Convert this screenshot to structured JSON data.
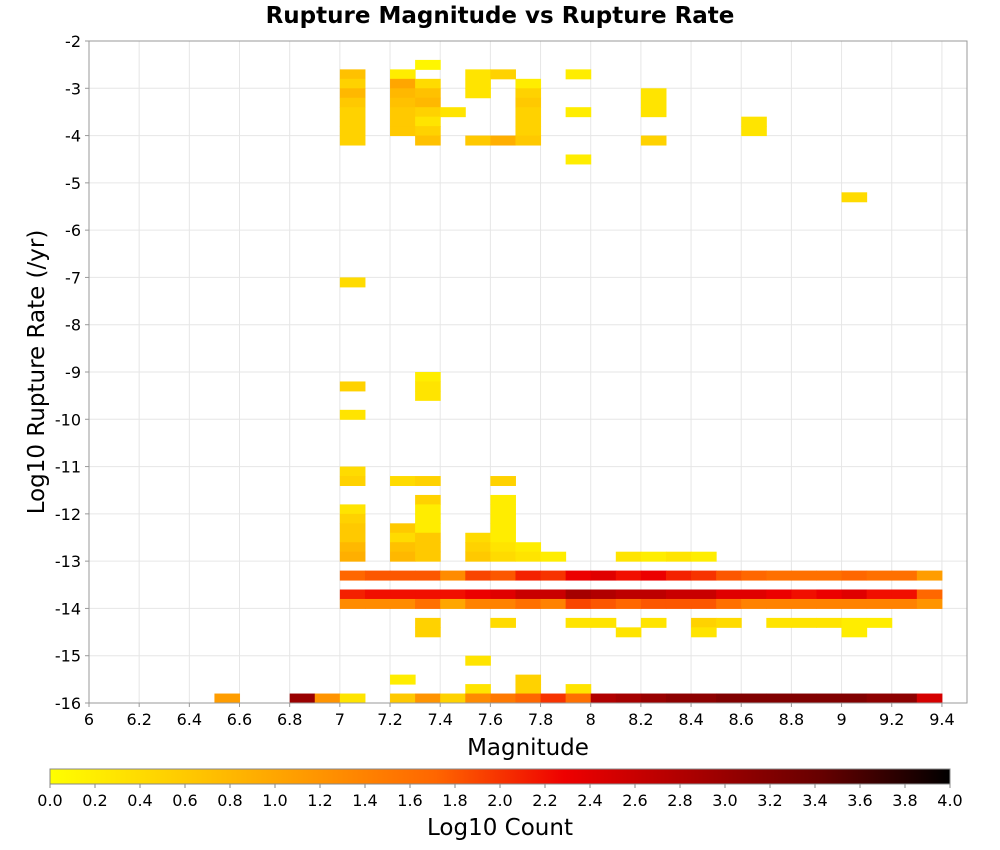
{
  "chart_data": {
    "type": "heatmap",
    "title": "Rupture Magnitude vs Rupture Rate",
    "xlabel": "Magnitude",
    "ylabel": "Log10 Rupture Rate (/yr)",
    "colorbar_label": "Log10 Count",
    "xlim": [
      6,
      9.5
    ],
    "ylim": [
      -16,
      -2
    ],
    "x_ticks": [
      "6",
      "6.2",
      "6.4",
      "6.6",
      "6.8",
      "7",
      "7.2",
      "7.4",
      "7.6",
      "7.8",
      "8",
      "8.2",
      "8.4",
      "8.6",
      "8.8",
      "9",
      "9.2",
      "9.4"
    ],
    "y_ticks": [
      "-2",
      "-3",
      "-4",
      "-5",
      "-6",
      "-7",
      "-8",
      "-9",
      "-10",
      "-11",
      "-12",
      "-13",
      "-14",
      "-15",
      "-16"
    ],
    "colorbar_ticks": [
      "0.0",
      "0.2",
      "0.4",
      "0.6",
      "0.8",
      "1.0",
      "1.2",
      "1.4",
      "1.6",
      "1.8",
      "2.0",
      "2.2",
      "2.4",
      "2.6",
      "2.8",
      "3.0",
      "3.2",
      "3.4",
      "3.6",
      "3.8",
      "4.0"
    ],
    "colorbar_range": [
      0,
      4
    ],
    "colormap": [
      "#ffff00",
      "#ffcc00",
      "#ff9900",
      "#ff6600",
      "#ee0000",
      "#aa0000",
      "#660000",
      "#000000"
    ],
    "bin_width_x": 0.1,
    "bin_height_y": 0.2,
    "cells": [
      [
        7.35,
        -2.5,
        0.1
      ],
      [
        7.05,
        -2.7,
        0.7
      ],
      [
        7.25,
        -2.7,
        0.2
      ],
      [
        7.55,
        -2.7,
        0.3
      ],
      [
        7.65,
        -2.7,
        0.5
      ],
      [
        7.95,
        -2.7,
        0.2
      ],
      [
        7.05,
        -2.9,
        0.5
      ],
      [
        7.25,
        -2.9,
        1.0
      ],
      [
        7.35,
        -2.9,
        0.4
      ],
      [
        7.55,
        -2.9,
        0.3
      ],
      [
        7.75,
        -2.9,
        0.2
      ],
      [
        7.05,
        -3.1,
        0.8
      ],
      [
        7.25,
        -3.1,
        0.8
      ],
      [
        7.35,
        -3.1,
        0.7
      ],
      [
        7.55,
        -3.1,
        0.3
      ],
      [
        7.75,
        -3.1,
        0.5
      ],
      [
        8.25,
        -3.1,
        0.3
      ],
      [
        7.05,
        -3.3,
        0.6
      ],
      [
        7.25,
        -3.3,
        0.7
      ],
      [
        7.35,
        -3.3,
        0.8
      ],
      [
        7.75,
        -3.3,
        0.6
      ],
      [
        8.25,
        -3.3,
        0.3
      ],
      [
        7.05,
        -3.5,
        0.5
      ],
      [
        7.25,
        -3.5,
        0.6
      ],
      [
        7.35,
        -3.5,
        0.5
      ],
      [
        7.45,
        -3.5,
        0.3
      ],
      [
        7.75,
        -3.5,
        0.5
      ],
      [
        7.95,
        -3.5,
        0.2
      ],
      [
        8.25,
        -3.5,
        0.3
      ],
      [
        7.05,
        -3.7,
        0.5
      ],
      [
        7.25,
        -3.7,
        0.6
      ],
      [
        7.35,
        -3.7,
        0.3
      ],
      [
        7.75,
        -3.7,
        0.5
      ],
      [
        8.65,
        -3.7,
        0.3
      ],
      [
        7.05,
        -3.9,
        0.5
      ],
      [
        7.25,
        -3.9,
        0.6
      ],
      [
        7.35,
        -3.9,
        0.5
      ],
      [
        7.75,
        -3.9,
        0.5
      ],
      [
        8.65,
        -3.9,
        0.3
      ],
      [
        7.05,
        -4.1,
        0.5
      ],
      [
        7.35,
        -4.1,
        0.7
      ],
      [
        7.55,
        -4.1,
        0.6
      ],
      [
        7.65,
        -4.1,
        0.9
      ],
      [
        7.75,
        -4.1,
        0.6
      ],
      [
        8.25,
        -4.1,
        0.5
      ],
      [
        7.95,
        -4.5,
        0.2
      ],
      [
        9.05,
        -5.3,
        0.4
      ],
      [
        7.05,
        -7.1,
        0.4
      ],
      [
        7.35,
        -9.1,
        0.2
      ],
      [
        7.35,
        -9.3,
        0.3
      ],
      [
        7.05,
        -9.3,
        0.5
      ],
      [
        7.35,
        -9.5,
        0.3
      ],
      [
        7.05,
        -9.9,
        0.3
      ],
      [
        7.05,
        -11.1,
        0.4
      ],
      [
        7.05,
        -11.3,
        0.5
      ],
      [
        7.25,
        -11.3,
        0.4
      ],
      [
        7.35,
        -11.3,
        0.5
      ],
      [
        7.65,
        -11.3,
        0.5
      ],
      [
        7.35,
        -11.7,
        0.5
      ],
      [
        7.65,
        -11.7,
        0.2
      ],
      [
        7.05,
        -11.9,
        0.3
      ],
      [
        7.35,
        -11.9,
        0.2
      ],
      [
        7.65,
        -11.9,
        0.2
      ],
      [
        7.05,
        -12.1,
        0.5
      ],
      [
        7.35,
        -12.1,
        0.2
      ],
      [
        7.65,
        -12.1,
        0.2
      ],
      [
        7.05,
        -12.3,
        0.6
      ],
      [
        7.25,
        -12.3,
        0.6
      ],
      [
        7.35,
        -12.3,
        0.2
      ],
      [
        7.65,
        -12.3,
        0.2
      ],
      [
        7.05,
        -12.5,
        0.6
      ],
      [
        7.25,
        -12.5,
        0.4
      ],
      [
        7.35,
        -12.5,
        0.6
      ],
      [
        7.55,
        -12.5,
        0.4
      ],
      [
        7.65,
        -12.5,
        0.2
      ],
      [
        7.05,
        -12.7,
        0.8
      ],
      [
        7.25,
        -12.7,
        0.7
      ],
      [
        7.35,
        -12.7,
        0.6
      ],
      [
        7.55,
        -12.7,
        0.5
      ],
      [
        7.65,
        -12.7,
        0.3
      ],
      [
        7.75,
        -12.7,
        0.2
      ],
      [
        7.05,
        -12.9,
        0.9
      ],
      [
        7.25,
        -12.9,
        0.8
      ],
      [
        7.35,
        -12.9,
        0.6
      ],
      [
        7.55,
        -12.9,
        0.6
      ],
      [
        7.65,
        -12.9,
        0.4
      ],
      [
        7.75,
        -12.9,
        0.3
      ],
      [
        7.85,
        -12.9,
        0.2
      ],
      [
        8.15,
        -12.9,
        0.3
      ],
      [
        8.25,
        -12.9,
        0.2
      ],
      [
        8.35,
        -12.9,
        0.3
      ],
      [
        8.45,
        -12.9,
        0.2
      ],
      [
        7.05,
        -13.3,
        1.7
      ],
      [
        7.15,
        -13.3,
        1.8
      ],
      [
        7.25,
        -13.3,
        1.8
      ],
      [
        7.35,
        -13.3,
        1.8
      ],
      [
        7.45,
        -13.3,
        1.3
      ],
      [
        7.55,
        -13.3,
        1.9
      ],
      [
        7.65,
        -13.3,
        1.8
      ],
      [
        7.75,
        -13.3,
        2.1
      ],
      [
        7.85,
        -13.3,
        2.0
      ],
      [
        7.95,
        -13.3,
        2.3
      ],
      [
        8.05,
        -13.3,
        2.4
      ],
      [
        8.15,
        -13.3,
        2.2
      ],
      [
        8.25,
        -13.3,
        2.3
      ],
      [
        8.35,
        -13.3,
        2.1
      ],
      [
        8.45,
        -13.3,
        2.0
      ],
      [
        8.55,
        -13.3,
        1.8
      ],
      [
        8.65,
        -13.3,
        1.7
      ],
      [
        8.75,
        -13.3,
        1.6
      ],
      [
        8.85,
        -13.3,
        1.6
      ],
      [
        8.95,
        -13.3,
        1.6
      ],
      [
        9.05,
        -13.3,
        1.7
      ],
      [
        9.15,
        -13.3,
        1.6
      ],
      [
        9.25,
        -13.3,
        1.6
      ],
      [
        9.35,
        -13.3,
        1.1
      ],
      [
        7.05,
        -13.7,
        2.1
      ],
      [
        7.15,
        -13.7,
        2.2
      ],
      [
        7.25,
        -13.7,
        2.2
      ],
      [
        7.35,
        -13.7,
        2.2
      ],
      [
        7.45,
        -13.7,
        2.2
      ],
      [
        7.55,
        -13.7,
        2.3
      ],
      [
        7.65,
        -13.7,
        2.4
      ],
      [
        7.75,
        -13.7,
        2.6
      ],
      [
        7.85,
        -13.7,
        2.6
      ],
      [
        7.95,
        -13.7,
        2.9
      ],
      [
        8.05,
        -13.7,
        2.8
      ],
      [
        8.15,
        -13.7,
        2.7
      ],
      [
        8.25,
        -13.7,
        2.7
      ],
      [
        8.35,
        -13.7,
        2.6
      ],
      [
        8.45,
        -13.7,
        2.6
      ],
      [
        8.55,
        -13.7,
        2.4
      ],
      [
        8.65,
        -13.7,
        2.4
      ],
      [
        8.75,
        -13.7,
        2.3
      ],
      [
        8.85,
        -13.7,
        2.2
      ],
      [
        8.95,
        -13.7,
        2.3
      ],
      [
        9.05,
        -13.7,
        2.4
      ],
      [
        9.15,
        -13.7,
        2.2
      ],
      [
        9.25,
        -13.7,
        2.2
      ],
      [
        9.35,
        -13.7,
        1.7
      ],
      [
        7.05,
        -13.9,
        1.3
      ],
      [
        7.15,
        -13.9,
        1.3
      ],
      [
        7.25,
        -13.9,
        1.3
      ],
      [
        7.35,
        -13.9,
        1.6
      ],
      [
        7.45,
        -13.9,
        1.0
      ],
      [
        7.55,
        -13.9,
        1.4
      ],
      [
        7.65,
        -13.9,
        1.4
      ],
      [
        7.75,
        -13.9,
        1.6
      ],
      [
        7.85,
        -13.9,
        1.4
      ],
      [
        7.95,
        -13.9,
        1.9
      ],
      [
        8.05,
        -13.9,
        1.8
      ],
      [
        8.15,
        -13.9,
        1.7
      ],
      [
        8.25,
        -13.9,
        1.8
      ],
      [
        8.35,
        -13.9,
        1.8
      ],
      [
        8.45,
        -13.9,
        1.8
      ],
      [
        8.55,
        -13.9,
        1.6
      ],
      [
        8.65,
        -13.9,
        1.4
      ],
      [
        8.75,
        -13.9,
        1.4
      ],
      [
        8.85,
        -13.9,
        1.4
      ],
      [
        8.95,
        -13.9,
        1.4
      ],
      [
        9.05,
        -13.9,
        1.4
      ],
      [
        9.15,
        -13.9,
        1.4
      ],
      [
        9.25,
        -13.9,
        1.4
      ],
      [
        9.35,
        -13.9,
        1.2
      ],
      [
        7.35,
        -14.3,
        0.5
      ],
      [
        7.65,
        -14.3,
        0.4
      ],
      [
        7.95,
        -14.3,
        0.3
      ],
      [
        8.05,
        -14.3,
        0.3
      ],
      [
        8.25,
        -14.3,
        0.3
      ],
      [
        8.45,
        -14.3,
        0.5
      ],
      [
        8.55,
        -14.3,
        0.4
      ],
      [
        8.75,
        -14.3,
        0.3
      ],
      [
        8.85,
        -14.3,
        0.3
      ],
      [
        8.95,
        -14.3,
        0.3
      ],
      [
        9.05,
        -14.3,
        0.2
      ],
      [
        9.15,
        -14.3,
        0.2
      ],
      [
        7.35,
        -14.5,
        0.5
      ],
      [
        8.15,
        -14.5,
        0.3
      ],
      [
        8.45,
        -14.5,
        0.3
      ],
      [
        9.05,
        -14.5,
        0.2
      ],
      [
        7.55,
        -15.1,
        0.3
      ],
      [
        7.25,
        -15.5,
        0.2
      ],
      [
        7.75,
        -15.5,
        0.5
      ],
      [
        7.55,
        -15.7,
        0.3
      ],
      [
        7.75,
        -15.7,
        0.5
      ],
      [
        7.95,
        -15.7,
        0.3
      ],
      [
        6.55,
        -15.9,
        1.1
      ],
      [
        6.85,
        -15.9,
        3.0
      ],
      [
        6.95,
        -15.9,
        1.2
      ],
      [
        7.05,
        -15.9,
        0.3
      ],
      [
        7.25,
        -15.9,
        0.6
      ],
      [
        7.35,
        -15.9,
        1.2
      ],
      [
        7.45,
        -15.9,
        0.5
      ],
      [
        7.55,
        -15.9,
        1.3
      ],
      [
        7.65,
        -15.9,
        1.5
      ],
      [
        7.75,
        -15.9,
        1.7
      ],
      [
        7.85,
        -15.9,
        2.0
      ],
      [
        7.95,
        -15.9,
        1.6
      ],
      [
        8.05,
        -15.9,
        2.8
      ],
      [
        8.15,
        -15.9,
        2.9
      ],
      [
        8.25,
        -15.9,
        3.0
      ],
      [
        8.35,
        -15.9,
        3.1
      ],
      [
        8.45,
        -15.9,
        3.1
      ],
      [
        8.55,
        -15.9,
        3.2
      ],
      [
        8.65,
        -15.9,
        3.2
      ],
      [
        8.75,
        -15.9,
        3.2
      ],
      [
        8.85,
        -15.9,
        3.2
      ],
      [
        8.95,
        -15.9,
        3.2
      ],
      [
        9.05,
        -15.9,
        3.2
      ],
      [
        9.15,
        -15.9,
        3.1
      ],
      [
        9.25,
        -15.9,
        3.1
      ],
      [
        9.35,
        -15.9,
        2.5
      ]
    ]
  }
}
